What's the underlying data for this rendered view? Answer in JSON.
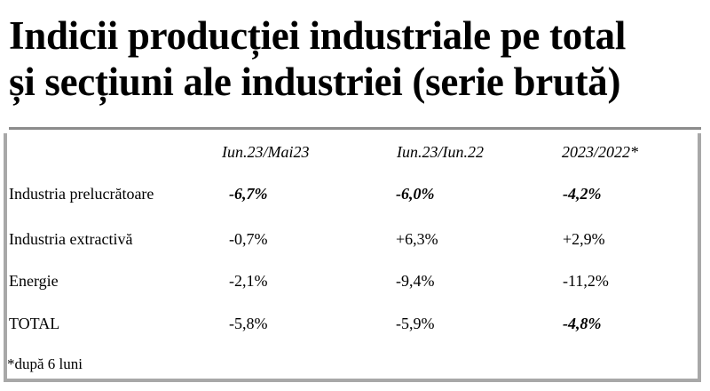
{
  "title": {
    "line1": "Indicii producției industriale pe total",
    "line2": "și secțiuni ale industriei (serie brută)"
  },
  "table": {
    "columns": [
      "Iun.23/Mai23",
      "Iun.23/Iun.22",
      "2023/2022*"
    ],
    "rows": [
      {
        "label": "Industria prelucrătoare",
        "values": [
          "-6,7%",
          "-6,0%",
          "-4,2%"
        ],
        "emphasis": [
          true,
          true,
          true
        ]
      },
      {
        "label": "Industria extractivă",
        "values": [
          "-0,7%",
          "+6,3%",
          "+2,9%"
        ],
        "emphasis": [
          false,
          false,
          false
        ]
      },
      {
        "label": "Energie",
        "values": [
          "-2,1%",
          "-9,4%",
          "-11,2%"
        ],
        "emphasis": [
          false,
          false,
          false
        ]
      },
      {
        "label": "TOTAL",
        "values": [
          "-5,8%",
          "-5,9%",
          "-4,8%"
        ],
        "emphasis": [
          false,
          false,
          true
        ]
      }
    ]
  },
  "footnote": "*după 6 luni"
}
